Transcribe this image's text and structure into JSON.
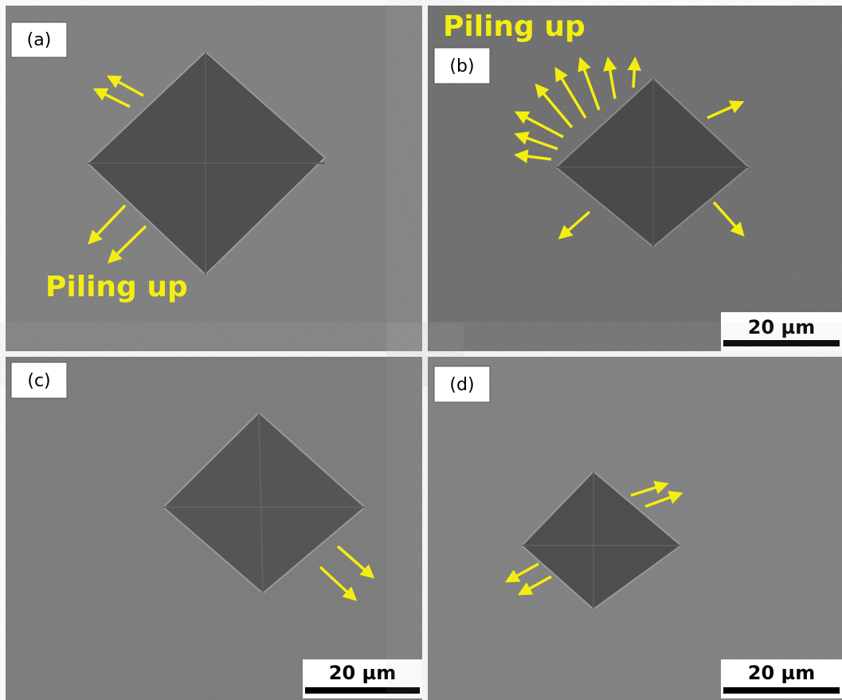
{
  "panels": [
    {
      "label": "(a)",
      "annotation": "Piling up"
    },
    {
      "label": "(b)",
      "annotation": "Piling up",
      "scale_bar": "20 µm"
    },
    {
      "label": "(c)",
      "scale_bar": "20 µm"
    },
    {
      "label": "(d)",
      "scale_bar": "20 µm"
    }
  ]
}
